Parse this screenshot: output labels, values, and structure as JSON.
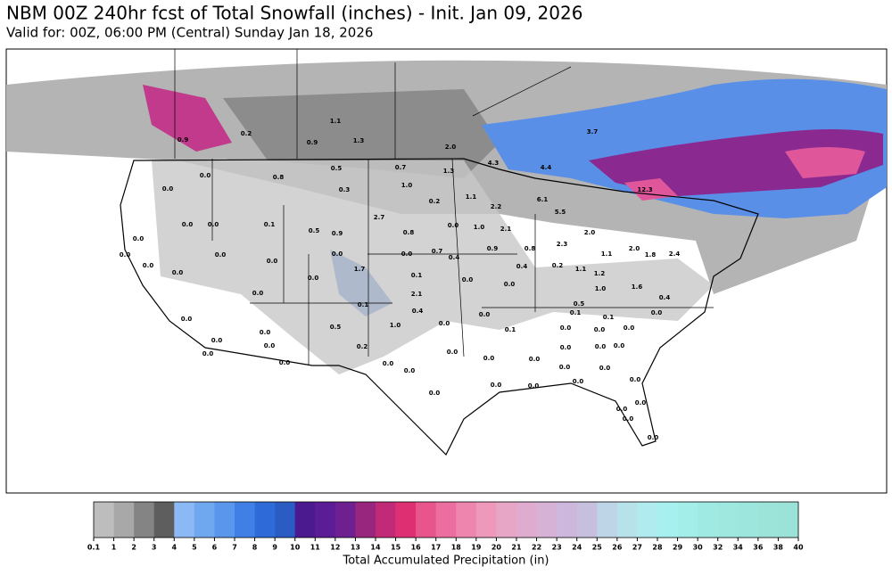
{
  "header": {
    "title": "NBM 00Z 240hr fcst of Total Snowfall (inches) - Init. Jan 09, 2026",
    "subtitle": "Valid for: 00Z, 06:00 PM (Central) Sunday Jan 18, 2026"
  },
  "map": {
    "labels": [
      "0.2",
      "0.9",
      "1.1",
      "0.9",
      "1.3",
      "2.0",
      "3.7",
      "4.3",
      "4.4",
      "0.7",
      "1.3",
      "0.5",
      "0.8",
      "0.0",
      "0.0",
      "1.0",
      "0.3",
      "0.2",
      "1.1",
      "2.2",
      "6.1",
      "12.3",
      "5.5",
      "2.7",
      "0.0",
      "0.1",
      "0.5",
      "0.9",
      "0.8",
      "0.0",
      "1.0",
      "2.1",
      "2.0",
      "2.3",
      "0.0",
      "0.0",
      "0.0",
      "0.0",
      "0.0",
      "0.0",
      "0.0",
      "0.0",
      "1.7",
      "0.0",
      "0.7",
      "0.4",
      "0.9",
      "0.8",
      "1.1",
      "2.0",
      "1.8",
      "2.4",
      "0.0",
      "0.0",
      "0.1",
      "0.0",
      "0.0",
      "0.4",
      "0.2",
      "1.1",
      "1.2",
      "1.0",
      "1.6",
      "0.4",
      "2.1",
      "0.1",
      "0.4",
      "0.5",
      "0.1",
      "0.1",
      "0.0",
      "0.0",
      "0.5",
      "1.0",
      "0.0",
      "0.0",
      "0.1",
      "0.0",
      "0.0",
      "0.0",
      "0.0",
      "0.0",
      "0.0",
      "0.2",
      "0.0",
      "0.0",
      "0.0",
      "0.0",
      "0.0",
      "0.0",
      "0.0",
      "0.0",
      "0.0",
      "0.0",
      "0.0",
      "0.0",
      "0.0",
      "0.0",
      "0.0",
      "0.0",
      "0.0",
      "0.0",
      "0.0",
      "0.0",
      "0.0"
    ]
  },
  "colorbar": {
    "label": "Total Accumulated Precipitation (in)",
    "ticks": [
      0.1,
      1,
      2,
      3,
      4,
      5,
      6,
      7,
      8,
      9,
      10,
      11,
      12,
      13,
      14,
      15,
      16,
      17,
      18,
      19,
      20,
      21,
      22,
      23,
      24,
      25,
      26,
      27,
      28,
      29,
      30,
      32,
      34,
      36,
      38,
      40
    ],
    "colors": [
      "#bdbdbd",
      "#a8a8a8",
      "#848484",
      "#5e5e5e",
      "#8bb9f5",
      "#70a8f0",
      "#5a96ec",
      "#3f7fe6",
      "#2f6bd8",
      "#2a5cc4",
      "#4b1a8f",
      "#5a1d96",
      "#6e2090",
      "#98267e",
      "#c02a77",
      "#de2f73",
      "#e8548c",
      "#ec6ea0",
      "#ee85ae",
      "#ee98bb",
      "#e8a6c6",
      "#dfacd0",
      "#d6b2d6",
      "#cdb7dc",
      "#c6bfde",
      "#bed5e8",
      "#b8e2ea",
      "#b0ecef",
      "#a8f0f0",
      "#a4eeea",
      "#a0eae4",
      "#9ee8e0",
      "#9de6dd",
      "#9ce4da",
      "#9be2d8"
    ]
  }
}
